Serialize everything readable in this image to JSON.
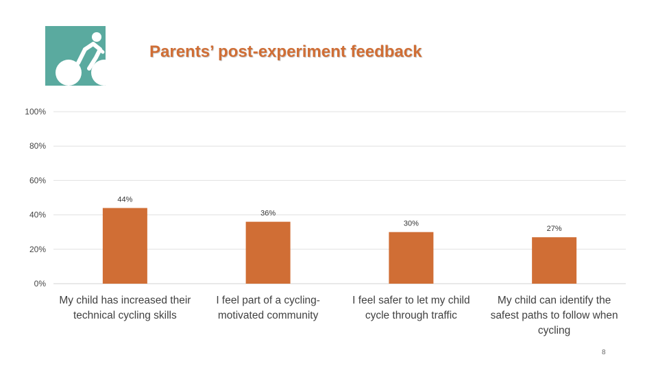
{
  "slide": {
    "title": "Parents’ post-experiment feedback",
    "page_number": "8",
    "logo_icon": "cyclist-icon"
  },
  "colors": {
    "accent": "#d06e35",
    "bar": "#d06e35",
    "logo_bg": "#5aaa9f",
    "gridline": "#e0e0e0"
  },
  "chart_data": {
    "type": "bar",
    "categories": [
      "My child has increased their technical cycling skills",
      "I feel part of a cycling-motivated community",
      "I feel safer to let my child cycle through traffic",
      "My child can identify the safest paths to follow when cycling"
    ],
    "category_lines": [
      [
        "My child has increased their",
        "technical cycling skills"
      ],
      [
        "I feel part of a cycling-",
        "motivated community"
      ],
      [
        "I feel safer to let my child",
        "cycle through traffic"
      ],
      [
        "My child can identify the",
        "safest paths to follow when",
        "cycling"
      ]
    ],
    "values": [
      44,
      36,
      30,
      27
    ],
    "data_labels": [
      "44%",
      "36%",
      "30%",
      "27%"
    ],
    "ylim": [
      0,
      100
    ],
    "yticks": [
      0,
      20,
      40,
      60,
      80,
      100
    ],
    "ytick_labels": [
      "0%",
      "20%",
      "40%",
      "60%",
      "80%",
      "100%"
    ],
    "grid": true,
    "legend": "none",
    "title": "",
    "xlabel": "",
    "ylabel": ""
  }
}
